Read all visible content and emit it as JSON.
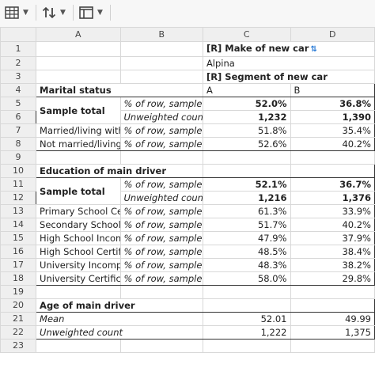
{
  "toolbar": {
    "buttons": [
      {
        "icon": "table-icon"
      },
      {
        "icon": "sort-icon"
      },
      {
        "icon": "panel-icon"
      }
    ]
  },
  "columns": [
    "A",
    "B",
    "C",
    "D"
  ],
  "rows": [
    "1",
    "2",
    "3",
    "4",
    "5",
    "6",
    "7",
    "8",
    "9",
    "10",
    "11",
    "12",
    "13",
    "14",
    "15",
    "16",
    "17",
    "18",
    "19",
    "20",
    "21",
    "22",
    "23"
  ],
  "cells": {
    "r1c": "[R] Make of new car",
    "r2c": "Alpina",
    "r3c": "[R] Segment of new car",
    "r4a": "Marital status",
    "r4c": "A",
    "r4d": "B",
    "r5a": "Sample total",
    "r5b": "% of row, sample base",
    "r5c": "52.0%",
    "r5d": "36.8%",
    "r6b": "Unweighted count",
    "r6c": "1,232",
    "r6d": "1,390",
    "r7a": "Married/living with partner",
    "r7b": "% of row, sample base",
    "r7c": "51.8%",
    "r7d": "35.4%",
    "r8a": "Not married/living with partner",
    "r8b": "% of row, sample base",
    "r8c": "52.6%",
    "r8d": "40.2%",
    "r10a": "Education of main driver",
    "r11a": "Sample total",
    "r11b": "% of row, sample base",
    "r11c": "52.1%",
    "r11d": "36.7%",
    "r12b": "Unweighted count",
    "r12c": "1,216",
    "r12d": "1,376",
    "r13a": "Primary School Certificate",
    "r13b": "% of row, sample base",
    "r13c": "61.3%",
    "r13d": "33.9%",
    "r14a": "Secondary School Certificate",
    "r14b": "% of row, sample base",
    "r14c": "51.7%",
    "r14d": "40.2%",
    "r15a": "High School Incomplete",
    "r15b": "% of row, sample base",
    "r15c": "47.9%",
    "r15d": "37.9%",
    "r16a": "High School Certificate",
    "r16b": "% of row, sample base",
    "r16c": "48.5%",
    "r16d": "38.4%",
    "r17a": "University Incomplete",
    "r17b": "% of row, sample base",
    "r17c": "48.3%",
    "r17d": "38.2%",
    "r18a": "University Certificate",
    "r18b": "% of row, sample base",
    "r18c": "58.0%",
    "r18d": "29.8%",
    "r20a": "Age of main driver",
    "r21a": "Mean",
    "r21c": "52.01",
    "r21d": "49.99",
    "r22a": "Unweighted count",
    "r22c": "1,222",
    "r22d": "1,375"
  }
}
